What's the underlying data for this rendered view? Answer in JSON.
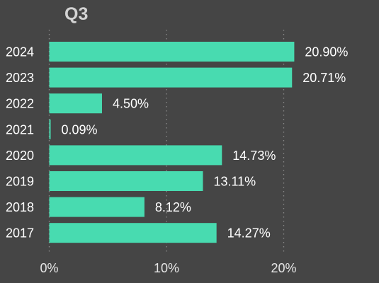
{
  "colors": {
    "background": "#454545",
    "bar": "#48dbb0",
    "gridline": "#8a8a8a",
    "title": "#d3d3d3",
    "text": "#ffffff"
  },
  "chart_data": {
    "type": "bar",
    "orientation": "horizontal",
    "title": "Q3",
    "xlabel": "",
    "ylabel": "",
    "categories": [
      "2024",
      "2023",
      "2022",
      "2021",
      "2020",
      "2019",
      "2018",
      "2017"
    ],
    "values": [
      20.9,
      20.71,
      4.5,
      0.09,
      14.73,
      13.11,
      8.12,
      14.27
    ],
    "value_labels": [
      "20.90%",
      "20.71%",
      "4.50%",
      "0.09%",
      "14.73%",
      "13.11%",
      "8.12%",
      "14.27%"
    ],
    "xlim": [
      0,
      21
    ],
    "x_ticks": [
      0,
      10,
      20
    ],
    "x_tick_labels": [
      "0%",
      "10%",
      "20%"
    ],
    "grid": true,
    "grid_style": "dotted vertical",
    "legend": "none"
  }
}
